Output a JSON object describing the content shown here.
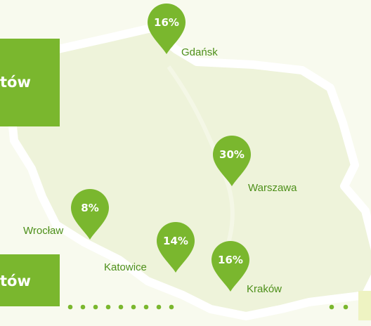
{
  "boxes": [
    "tów",
    "tów"
  ],
  "pins": [
    {
      "value": "16%",
      "city": "Gdańsk"
    },
    {
      "value": "30%",
      "city": "Warszawa"
    },
    {
      "value": "8%",
      "city": "Wrocław"
    },
    {
      "value": "14%",
      "city": "Katowice"
    },
    {
      "value": "16%",
      "city": "Kraków"
    }
  ]
}
